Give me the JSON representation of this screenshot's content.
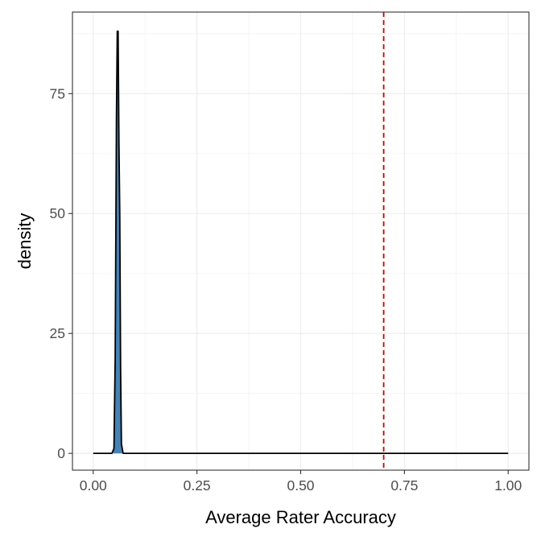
{
  "chart_data": {
    "type": "area",
    "title": "",
    "xlabel": "Average Rater Accuracy",
    "ylabel": "density",
    "xlim": [
      -0.05,
      1.05
    ],
    "ylim": [
      -3.5,
      92
    ],
    "x_ticks": [
      0,
      0.25,
      0.5,
      0.75,
      1
    ],
    "x_tick_labels": [
      "0.00",
      "0.25",
      "0.50",
      "0.75",
      "1.00"
    ],
    "y_ticks": [
      0,
      25,
      50,
      75
    ],
    "y_tick_labels": [
      "0",
      "25",
      "50",
      "75"
    ],
    "grid": true,
    "legend": "none",
    "series": [
      {
        "x": [
          0.0,
          0.045,
          0.05,
          0.053,
          0.056,
          0.058,
          0.06,
          0.062,
          0.064,
          0.066,
          0.068,
          0.072,
          0.075,
          1.0
        ],
        "y": [
          0,
          0,
          1,
          20,
          70,
          88,
          88,
          65,
          50,
          18,
          2,
          0,
          0,
          0
        ],
        "fill": "#4682b4",
        "stroke": "#000000"
      }
    ],
    "reference_line": {
      "x": 0.7,
      "color": "#cc0000",
      "style": "dashed"
    }
  }
}
